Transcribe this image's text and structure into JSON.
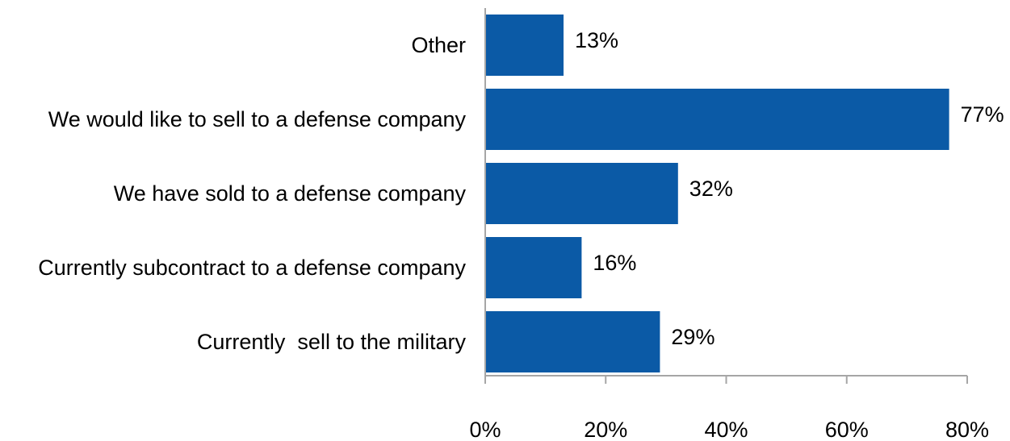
{
  "chart_data": {
    "type": "bar",
    "orientation": "horizontal",
    "categories": [
      "Other",
      "We would like to sell to a defense company",
      "We have sold to a defense company",
      "Currently subcontract to a defense company",
      "Currently  sell to the military"
    ],
    "values": [
      13,
      77,
      32,
      16,
      29
    ],
    "data_labels": [
      "13%",
      "77%",
      "32%",
      "16%",
      "29%"
    ],
    "x_ticks": [
      0,
      20,
      40,
      60,
      80
    ],
    "x_tick_labels": [
      "0%",
      "20%",
      "40%",
      "60%",
      "80%"
    ],
    "xlim": [
      0,
      80
    ],
    "title": "",
    "xlabel": "",
    "ylabel": "",
    "grid": false,
    "legend": "none",
    "colors": {
      "bar": "#0b5aa6",
      "axis": "#a6a6a6",
      "text": "#000000"
    }
  }
}
